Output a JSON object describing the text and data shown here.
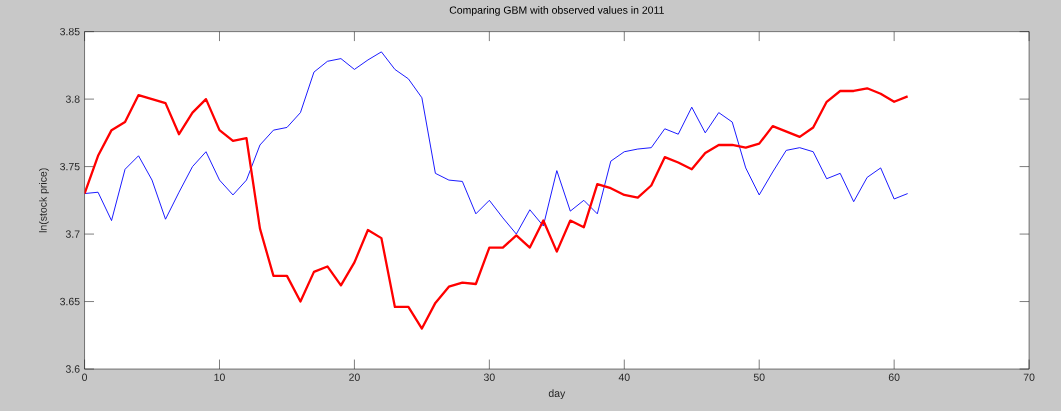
{
  "chart_data": {
    "type": "line",
    "title": "Comparing GBM with observed values in 2011",
    "xlabel": "day",
    "ylabel": "ln(stock price)",
    "x": [
      0,
      1,
      2,
      3,
      4,
      5,
      6,
      7,
      8,
      9,
      10,
      11,
      12,
      13,
      14,
      15,
      16,
      17,
      18,
      19,
      20,
      21,
      22,
      23,
      24,
      25,
      26,
      27,
      28,
      29,
      30,
      31,
      32,
      33,
      34,
      35,
      36,
      37,
      38,
      39,
      40,
      41,
      42,
      43,
      44,
      45,
      46,
      47,
      48,
      49,
      50,
      51,
      52,
      53,
      54,
      55,
      56,
      57,
      58,
      59,
      60,
      61
    ],
    "xlim": [
      0,
      70
    ],
    "xticks": [
      0,
      10,
      20,
      30,
      40,
      50,
      60,
      70
    ],
    "ylim": [
      3.6,
      3.85
    ],
    "yticks": [
      3.6,
      3.65,
      3.7,
      3.75,
      3.8,
      3.85
    ],
    "line_style": "solid",
    "series": [
      {
        "color": "#0000ff",
        "values": [
          3.73,
          3.731,
          3.71,
          3.748,
          3.758,
          3.74,
          3.711,
          3.731,
          3.75,
          3.761,
          3.74,
          3.729,
          3.74,
          3.766,
          3.777,
          3.779,
          3.79,
          3.82,
          3.828,
          3.83,
          3.822,
          3.829,
          3.835,
          3.822,
          3.815,
          3.801,
          3.745,
          3.74,
          3.739,
          3.715,
          3.725,
          3.712,
          3.7,
          3.718,
          3.706,
          3.747,
          3.717,
          3.725,
          3.715,
          3.754,
          3.761,
          3.763,
          3.764,
          3.778,
          3.774,
          3.794,
          3.775,
          3.79,
          3.783,
          3.749,
          3.729,
          3.746,
          3.762,
          3.764,
          3.761,
          3.741,
          3.745,
          3.724,
          3.742,
          3.749,
          3.726,
          3.73
        ]
      },
      {
        "color": "#ff0000",
        "values": [
          3.73,
          3.758,
          3.777,
          3.783,
          3.803,
          3.8,
          3.797,
          3.774,
          3.79,
          3.8,
          3.777,
          3.769,
          3.771,
          3.704,
          3.669,
          3.669,
          3.65,
          3.672,
          3.676,
          3.662,
          3.679,
          3.703,
          3.697,
          3.646,
          3.646,
          3.63,
          3.649,
          3.661,
          3.664,
          3.663,
          3.69,
          3.69,
          3.699,
          3.69,
          3.71,
          3.687,
          3.71,
          3.705,
          3.737,
          3.734,
          3.729,
          3.727,
          3.736,
          3.757,
          3.753,
          3.748,
          3.76,
          3.766,
          3.766,
          3.764,
          3.767,
          3.78,
          3.776,
          3.772,
          3.779,
          3.798,
          3.806,
          3.806,
          3.808,
          3.804,
          3.798,
          3.802
        ]
      }
    ]
  }
}
